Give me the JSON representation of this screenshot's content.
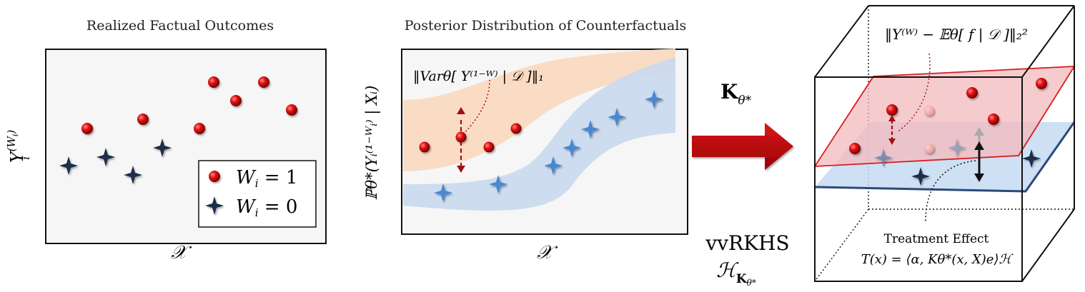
{
  "panel1": {
    "title": "Realized Factual Outcomes",
    "ylabel": "Y",
    "ylabel_sup": "(W",
    "ylabel_sup_sub": "i",
    "ylabel_sup_close": ")",
    "ylabel_sub": "i",
    "xlabel": "𝒳",
    "legend": [
      {
        "label": "W",
        "sub": "i",
        "rest": " = 1"
      },
      {
        "label": "W",
        "sub": "i",
        "rest": " = 0"
      }
    ]
  },
  "panel2": {
    "title": "Posterior Distribution of Counterfactuals",
    "ylabel": "ℙθ*(Yᵢ⁽¹⁻ᵂᵢ⁾ | Xᵢ)",
    "xlabel": "𝒳",
    "annotation": "‖Varθ[ Y⁽¹⁻ᵂ⁾ | 𝒟 ]‖₁"
  },
  "arrow": {
    "kernel_label": "K",
    "kernel_sub": "θ*",
    "space_label": "vvRKHS",
    "space_symbol": "ℋ",
    "space_sub": "K",
    "space_subsub": "θ*"
  },
  "panel3": {
    "formula": "‖Y⁽ᵂ⁾ − 𝔼θ[ f | 𝒟 ]‖₂²",
    "effect_title": "Treatment Effect",
    "effect_formula": "T(x) = ⟨α, Kθ*(x, X)e⟩ℋ"
  },
  "colors": {
    "treated": "#d61818",
    "control": "#1c2e4a",
    "control_light": "#4a88d0",
    "band_orange": "#fbd9bf",
    "band_blue": "#c9d9ee",
    "arrow_red": "#c0000a",
    "plane_red": "#f3b9bd",
    "plane_blue": "#c4daf2"
  },
  "icons": {
    "treated_marker": "red-sphere-icon",
    "control_marker": "four-point-star-icon"
  }
}
